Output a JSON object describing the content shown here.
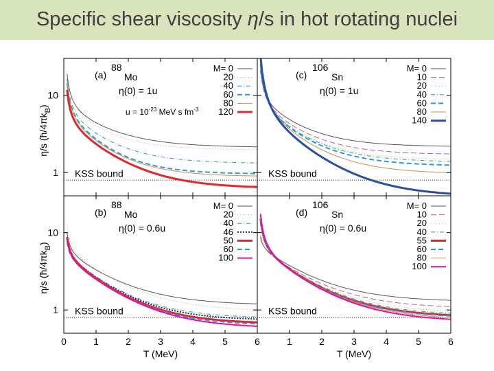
{
  "title": {
    "prefix": "Specific shear viscosity ",
    "eta": "η",
    "suffix": "/s in hot rotating nuclei"
  },
  "colors": {
    "title_bar": "#d8e4bc",
    "title_text": "#404040",
    "red": "#e0272d",
    "blue": "#2a4f9f",
    "magenta": "#e0109e",
    "dash_blue": "#2d9ad4",
    "teal": "#26a08c"
  },
  "annotation": {
    "base": "u = 10",
    "exp1": "-23",
    "mid": " MeV s fm",
    "exp2": "-3"
  },
  "chart_data": {
    "type": "line",
    "layout": "2x2 panels, shared axes",
    "xlabel": "T  (MeV)",
    "ylabel": "η/s  (ħ/4πk",
    "ylabel_sub": "B",
    "ylabel_close": ")",
    "xlim": [
      0,
      6
    ],
    "ylim": [
      0.5,
      30
    ],
    "y_scale": "log",
    "x_ticks": [
      0,
      1,
      2,
      3,
      4,
      5,
      6
    ],
    "y_ticks": [
      {
        "value": 1,
        "label": "1"
      },
      {
        "value": 10,
        "label": "10"
      }
    ],
    "kss_bound": {
      "value": 0.7958,
      "label": "KSS bound"
    },
    "panels": [
      {
        "id": "a",
        "tag": "(a)",
        "mass": "88",
        "element": "Mo",
        "eta_label": "η(0) = 1u",
        "legend_header": "M= 0",
        "series": [
          {
            "M": "0",
            "label": "M= 0",
            "color": "#555555",
            "dash": "",
            "width": 1,
            "T0": 0.28,
            "inf": 2.1,
            "A": 1.9,
            "tau": 1.2
          },
          {
            "M": "20",
            "label": "20",
            "color": "#c8a060",
            "dash": "1,3",
            "width": 1,
            "T0": 0.3,
            "inf": 1.95,
            "A": 1.7,
            "tau": 1.0
          },
          {
            "M": "40",
            "label": "40",
            "color": "#26a08c",
            "dash": "6,3,1,3",
            "width": 1,
            "T0": 0.3,
            "inf": 1.3,
            "A": 1.6,
            "tau": 1.1
          },
          {
            "M": "60",
            "label": "60",
            "color": "#2d9ad4",
            "dash": "7,4",
            "width": 2,
            "T0": 0.28,
            "inf": 0.95,
            "A": 1.5,
            "tau": 1.0
          },
          {
            "M": "80",
            "label": "80",
            "color": "#c88c4c",
            "dash": "",
            "width": 1,
            "T0": 0.3,
            "inf": 0.88,
            "A": 1.45,
            "tau": 1.05
          },
          {
            "M": "120",
            "label": "120",
            "color": "#e0272d",
            "dash": "",
            "width": 3,
            "T0": 0.28,
            "inf": 0.62,
            "A": 1.5,
            "tau": 1.2
          }
        ]
      },
      {
        "id": "c",
        "tag": "(c)",
        "mass": "106",
        "element": "Sn",
        "eta_label": "η(0) = 1u",
        "legend_header": "M= 0",
        "series": [
          {
            "M": "0",
            "label": "M= 0",
            "color": "#555555",
            "dash": "",
            "width": 1,
            "T0": 0.25,
            "inf": 2.15,
            "A": 2.3,
            "tau": 1.1
          },
          {
            "M": "10",
            "label": "10",
            "color": "#c06070",
            "dash": "8,4",
            "width": 1,
            "T0": 0.28,
            "inf": 1.7,
            "A": 2.2,
            "tau": 1.1
          },
          {
            "M": "20",
            "label": "20",
            "color": "#c8a060",
            "dash": "1,3",
            "width": 1,
            "T0": 0.3,
            "inf": 1.45,
            "A": 2.2,
            "tau": 1.1
          },
          {
            "M": "40",
            "label": "40",
            "color": "#26a08c",
            "dash": "6,3,1,3",
            "width": 1,
            "T0": 0.35,
            "inf": 1.35,
            "A": 2.1,
            "tau": 1.15
          },
          {
            "M": "60",
            "label": "60",
            "color": "#2d9ad4",
            "dash": "7,4",
            "width": 2,
            "T0": 0.4,
            "inf": 1.2,
            "A": 2.1,
            "tau": 1.15
          },
          {
            "M": "80",
            "label": "80",
            "color": "#c88c4c",
            "dash": "",
            "width": 1,
            "T0": 0.45,
            "inf": 0.95,
            "A": 2.1,
            "tau": 1.15
          },
          {
            "M": "140",
            "label": "140",
            "color": "#2a4f9f",
            "dash": "",
            "width": 3,
            "T0": 0.6,
            "inf": 0.48,
            "A": 2.1,
            "tau": 1.25
          }
        ]
      },
      {
        "id": "b",
        "tag": "(b)",
        "mass": "88",
        "element": "Mo",
        "eta_label": "η(0) = 0.6u",
        "legend_header": "M= 0",
        "series": [
          {
            "M": "0",
            "label": "M= 0",
            "color": "#555555",
            "dash": "",
            "width": 1,
            "T0": 0.15,
            "inf": 1.15,
            "A": 2.0,
            "tau": 1.3
          },
          {
            "M": "20",
            "label": "20",
            "color": "#c8a060",
            "dash": "1,3",
            "width": 1,
            "T0": 0.2,
            "inf": 0.95,
            "A": 2.2,
            "tau": 1.3
          },
          {
            "M": "40",
            "label": "40",
            "color": "#26a08c",
            "dash": "6,3,1,3",
            "width": 1,
            "T0": 0.15,
            "inf": 0.78,
            "A": 1.8,
            "tau": 1.2
          },
          {
            "M": "46",
            "label": "46",
            "color": "#1a1f6e",
            "dash": "2,2",
            "width": 2,
            "T0": 0.15,
            "inf": 0.73,
            "A": 1.8,
            "tau": 1.2
          },
          {
            "M": "50",
            "label": "50",
            "color": "#e0272d",
            "dash": "",
            "width": 3,
            "T0": 0.15,
            "inf": 0.66,
            "A": 1.8,
            "tau": 1.2
          },
          {
            "M": "60",
            "label": "60",
            "color": "#2d9ad4",
            "dash": "7,4",
            "width": 2,
            "T0": 0.12,
            "inf": 0.63,
            "A": 1.8,
            "tau": 1.2
          },
          {
            "M": "100",
            "label": "100",
            "color": "#e0109e",
            "dash": "",
            "width": 2,
            "T0": 0.15,
            "inf": 0.58,
            "A": 1.8,
            "tau": 1.25
          }
        ]
      },
      {
        "id": "d",
        "tag": "(d)",
        "mass": "106",
        "element": "Sn",
        "eta_label": "η(0) = 0.6u",
        "legend_header": "M= 0",
        "series": [
          {
            "M": "0",
            "label": "M= 0",
            "color": "#555555",
            "dash": "",
            "width": 1,
            "T0": 0.08,
            "inf": 1.28,
            "A": 2.4,
            "tau": 1.3
          },
          {
            "M": "10",
            "label": "10",
            "color": "#c06070",
            "dash": "8,4",
            "width": 1,
            "T0": 0.1,
            "inf": 1.05,
            "A": 2.4,
            "tau": 1.3
          },
          {
            "M": "20",
            "label": "20",
            "color": "#c8a060",
            "dash": "1,3",
            "width": 1,
            "T0": 0.15,
            "inf": 0.92,
            "A": 2.4,
            "tau": 1.3
          },
          {
            "M": "40",
            "label": "40",
            "color": "#26a08c",
            "dash": "6,3,1,3",
            "width": 1,
            "T0": 0.2,
            "inf": 0.85,
            "A": 2.4,
            "tau": 1.3
          },
          {
            "M": "55",
            "label": "55",
            "color": "#e0272d",
            "dash": "",
            "width": 3,
            "T0": 0.25,
            "inf": 0.8,
            "A": 2.3,
            "tau": 1.3
          },
          {
            "M": "60",
            "label": "60",
            "color": "#2d9ad4",
            "dash": "7,4",
            "width": 2,
            "T0": 0.25,
            "inf": 0.78,
            "A": 2.3,
            "tau": 1.3
          },
          {
            "M": "80",
            "label": "80",
            "color": "#c88c4c",
            "dash": "",
            "width": 1,
            "T0": 0.28,
            "inf": 0.74,
            "A": 2.3,
            "tau": 1.3
          },
          {
            "M": "100",
            "label": "100",
            "color": "#e0109e",
            "dash": "",
            "width": 2,
            "T0": 0.3,
            "inf": 0.7,
            "A": 2.3,
            "tau": 1.3
          }
        ]
      }
    ]
  }
}
